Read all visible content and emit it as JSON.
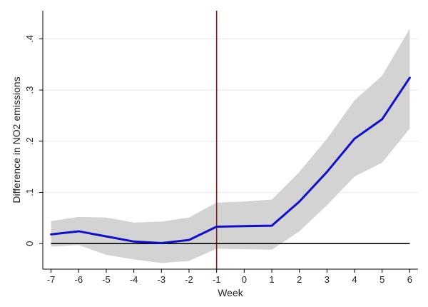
{
  "chart_data": {
    "type": "line",
    "title": "",
    "xlabel": "Week",
    "ylabel": "Difference in NO2 emissions",
    "x": [
      -7,
      -6,
      -5,
      -4,
      -3,
      -2,
      -1,
      0,
      1,
      2,
      3,
      4,
      5,
      6
    ],
    "x_tick_labels": [
      "-7",
      "-6",
      "-5",
      "-4",
      "-3",
      "-2",
      "-1",
      "0",
      "1",
      "2",
      "3",
      "4",
      "5",
      "6"
    ],
    "y_ticks": [
      0,
      0.1,
      0.2,
      0.3,
      0.4
    ],
    "y_tick_labels": [
      "0",
      ".1",
      ".2",
      ".3",
      ".4"
    ],
    "xlim": [
      -7.3,
      6.3
    ],
    "ylim": [
      -0.05,
      0.455
    ],
    "grid": "horizontal",
    "reference_vertical_x": -1,
    "reference_horizontal_y": 0,
    "series": [
      {
        "values": [
          0.018,
          0.024,
          0.014,
          0.004,
          0.001,
          0.007,
          0.033,
          0.034,
          0.035,
          0.082,
          0.14,
          0.205,
          0.243,
          0.324
        ],
        "ci_upper": [
          0.044,
          0.052,
          0.051,
          0.041,
          0.043,
          0.051,
          0.08,
          0.082,
          0.086,
          0.14,
          0.205,
          0.28,
          0.328,
          0.42
        ],
        "ci_lower": [
          -0.006,
          -0.003,
          -0.022,
          -0.031,
          -0.038,
          -0.034,
          -0.01,
          -0.011,
          -0.012,
          0.024,
          0.075,
          0.131,
          0.158,
          0.225
        ]
      }
    ],
    "colors": {
      "line": "#1010cc",
      "ci_band": "#d3d3d3",
      "vertical_reference": "#8b1a1a",
      "horizontal_reference": "#000000",
      "grid": "#e6ecef",
      "axis": "#000000"
    }
  }
}
